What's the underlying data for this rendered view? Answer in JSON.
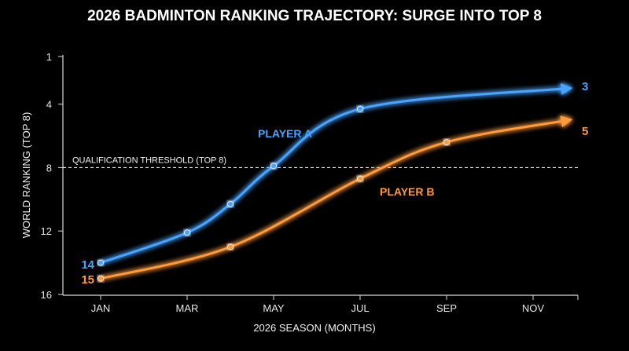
{
  "chart_data": {
    "type": "line",
    "title": "2026 BADMINTON RANKING TRAJECTORY: SURGE INTO TOP 8",
    "xlabel": "2026 SEASON (MONTHS)",
    "ylabel": "WORLD RANKING (TOP 8)",
    "x_ticks": [
      "JAN",
      "MAR",
      "MAY",
      "JUL",
      "SEP",
      "NOV"
    ],
    "y_ticks": [
      1,
      4,
      8,
      12,
      16
    ],
    "ylim": [
      16,
      1
    ],
    "y_inverted": true,
    "grid": false,
    "threshold": {
      "value": 8,
      "label": "QUALIFICATION THRESHOLD (TOP 8)"
    },
    "series": [
      {
        "name": "PLAYER A",
        "color": "#4aa3ff",
        "points": [
          {
            "x": "JAN",
            "y": 14
          },
          {
            "x": "MAR",
            "y": 12.1
          },
          {
            "x": "APR",
            "y": 10.3
          },
          {
            "x": "MAY",
            "y": 7.9
          },
          {
            "x": "JUL",
            "y": 4.3
          },
          {
            "x": "DEC",
            "y": 3
          }
        ],
        "markers": [
          true,
          true,
          true,
          true,
          true,
          false
        ],
        "start_label": "14",
        "end_label": "3"
      },
      {
        "name": "PLAYER B",
        "color": "#ff9a3c",
        "points": [
          {
            "x": "JAN",
            "y": 15
          },
          {
            "x": "APR",
            "y": 13
          },
          {
            "x": "JUL",
            "y": 8.7
          },
          {
            "x": "SEP",
            "y": 6.4
          },
          {
            "x": "DEC",
            "y": 5
          }
        ],
        "markers": [
          true,
          true,
          true,
          true,
          false
        ],
        "start_label": "15",
        "end_label": "5"
      }
    ]
  }
}
